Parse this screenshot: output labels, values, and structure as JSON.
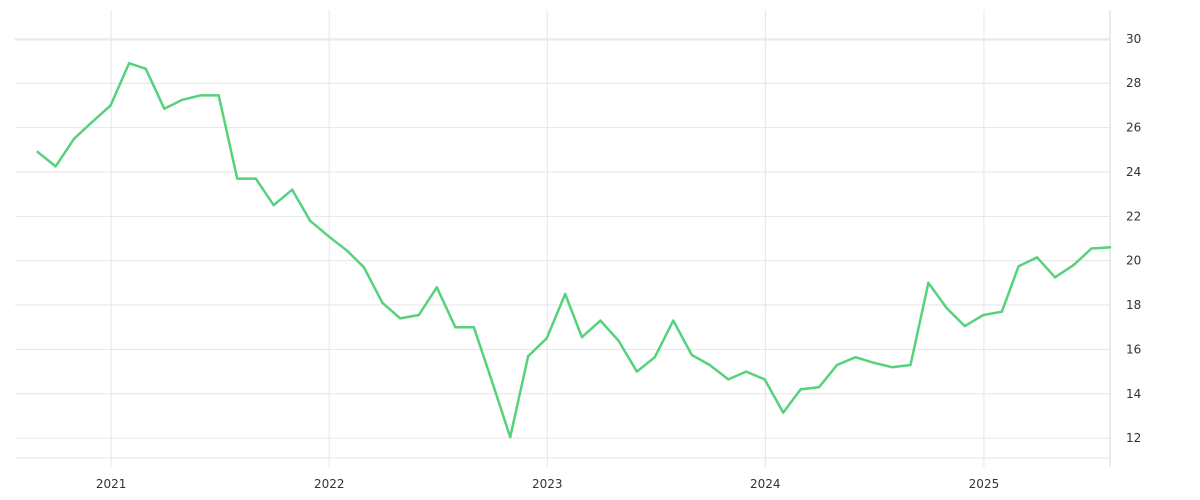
{
  "chart_data": {
    "type": "line",
    "title": "",
    "xlabel": "",
    "ylabel": "",
    "x_ticks": [
      "2021",
      "2022",
      "2023",
      "2024",
      "2025"
    ],
    "y_ticks": [
      12,
      14,
      16,
      18,
      20,
      22,
      24,
      26,
      28,
      30
    ],
    "ylim": [
      10.7,
      31.3
    ],
    "xlim": [
      "2020-07-24",
      "2025-07-31"
    ],
    "grid": true,
    "y_axis_side": "right",
    "line_color": "#57d27c",
    "series": [
      {
        "x": [
          "2020-08-31",
          "2020-09-30",
          "2020-10-31",
          "2020-11-30",
          "2020-12-31",
          "2021-01-31",
          "2021-02-28",
          "2021-03-31",
          "2021-04-30",
          "2021-05-31",
          "2021-06-30",
          "2021-07-31",
          "2021-08-31",
          "2021-09-30",
          "2021-10-31",
          "2021-11-30",
          "2021-12-31",
          "2022-01-31",
          "2022-02-28",
          "2022-03-31",
          "2022-04-30",
          "2022-05-31",
          "2022-06-30",
          "2022-07-31",
          "2022-08-31",
          "2022-09-30",
          "2022-10-31",
          "2022-11-30",
          "2022-12-31",
          "2023-01-31",
          "2023-02-28",
          "2023-03-31",
          "2023-04-30",
          "2023-05-31",
          "2023-06-30",
          "2023-07-31",
          "2023-08-31",
          "2023-09-30",
          "2023-10-31",
          "2023-11-30",
          "2023-12-31",
          "2024-01-31",
          "2024-02-29",
          "2024-03-31",
          "2024-04-30",
          "2024-05-31",
          "2024-06-30",
          "2024-07-31",
          "2024-08-31",
          "2024-09-30",
          "2024-10-31",
          "2024-11-30",
          "2024-12-31",
          "2025-01-31",
          "2025-02-28",
          "2025-03-31",
          "2025-04-30",
          "2025-05-31",
          "2025-06-30",
          "2025-07-31"
        ],
        "values": [
          24.9,
          24.25,
          25.5,
          26.25,
          27.0,
          28.9,
          28.65,
          26.85,
          27.25,
          27.45,
          27.45,
          23.7,
          23.7,
          22.5,
          23.2,
          21.8,
          21.1,
          20.45,
          19.7,
          18.1,
          17.4,
          17.55,
          18.8,
          17.0,
          17.0,
          14.6,
          12.05,
          15.7,
          16.5,
          18.5,
          16.55,
          17.3,
          16.4,
          15.0,
          15.65,
          17.3,
          15.75,
          15.3,
          14.65,
          15.0,
          14.65,
          13.15,
          14.2,
          14.3,
          15.3,
          15.65,
          15.4,
          15.2,
          15.3,
          19.0,
          17.85,
          17.05,
          17.55,
          17.7,
          19.75,
          20.15,
          19.25,
          19.8,
          20.55,
          20.6
        ]
      }
    ]
  }
}
